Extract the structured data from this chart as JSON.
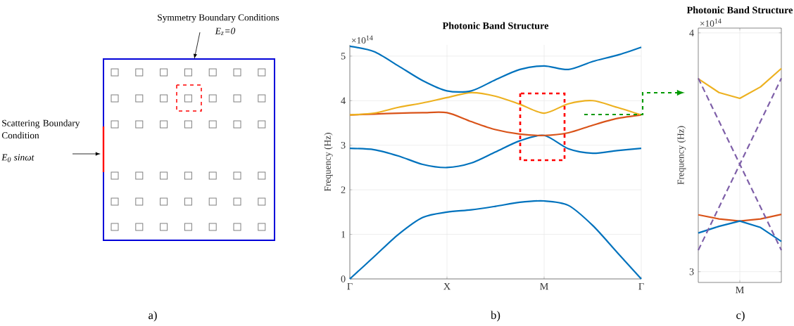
{
  "chart_data": [
    {
      "type": "other",
      "annotations": [
        "Symmetry Boundary Conditions",
        "E$_{z}$=0",
        "Scattering Boundary Condition",
        "E$_{0}$ sinωt",
        "a)"
      ]
    },
    {
      "type": "line",
      "title": "Photonic Band Structure",
      "ylabel": "Frequency (Hz)",
      "grid": true,
      "categories": [
        "Γ",
        null,
        null,
        null,
        "X",
        null,
        null,
        null,
        "M",
        null,
        null,
        null,
        "Γ"
      ],
      "ylim": [
        0,
        5.25
      ],
      "yticks": [
        0,
        1,
        2,
        3,
        4,
        5
      ],
      "series": [
        {
          "color": "#0072bd",
          "values": [
            0,
            0.5,
            1.0,
            1.38,
            1.5,
            1.55,
            1.63,
            1.72,
            1.75,
            1.65,
            1.2,
            0.6,
            0
          ]
        },
        {
          "color": "#0072bd",
          "values": [
            2.93,
            2.9,
            2.76,
            2.57,
            2.5,
            2.6,
            2.85,
            3.1,
            3.22,
            2.92,
            2.82,
            2.88,
            2.93
          ]
        },
        {
          "color": "#d95319",
          "values": [
            3.68,
            3.7,
            3.72,
            3.73,
            3.73,
            3.53,
            3.35,
            3.25,
            3.22,
            3.28,
            3.45,
            3.6,
            3.68
          ]
        },
        {
          "color": "#edb120",
          "values": [
            3.68,
            3.72,
            3.85,
            3.95,
            4.07,
            4.18,
            4.1,
            3.92,
            3.72,
            3.93,
            4.0,
            3.85,
            3.68
          ]
        },
        {
          "color": "#0072bd",
          "values": [
            5.22,
            5.1,
            4.78,
            4.45,
            4.22,
            4.22,
            4.47,
            4.7,
            4.78,
            4.7,
            4.88,
            5.02,
            5.2
          ]
        }
      ],
      "annotations": [
        "×10$^{14}$",
        "b)"
      ]
    },
    {
      "type": "line",
      "title": "Photonic Band Structure",
      "ylabel": "Frequency (Hz)",
      "grid": true,
      "categories": [
        null,
        null,
        "M",
        null,
        null
      ],
      "ylim": [
        2.955,
        4.02
      ],
      "yticks": [
        3,
        4
      ],
      "series": [
        {
          "color": "#edb120",
          "values": [
            3.808,
            3.75,
            3.726,
            3.774,
            3.851
          ]
        },
        {
          "color": "#d95319",
          "values": [
            3.238,
            3.221,
            3.212,
            3.221,
            3.24
          ]
        },
        {
          "color": "#0072bd",
          "values": [
            3.162,
            3.19,
            3.212,
            3.185,
            3.127
          ]
        },
        {
          "color": "#7e5fa8",
          "line_style": "dashed",
          "values": [
            3.81,
            3.63,
            3.45,
            3.27,
            3.09
          ]
        },
        {
          "color": "#7e5fa8",
          "line_style": "dashed",
          "values": [
            3.09,
            3.27,
            3.45,
            3.63,
            3.81
          ]
        }
      ],
      "annotations": [
        "×10$^{14}$",
        "c)"
      ]
    }
  ]
}
